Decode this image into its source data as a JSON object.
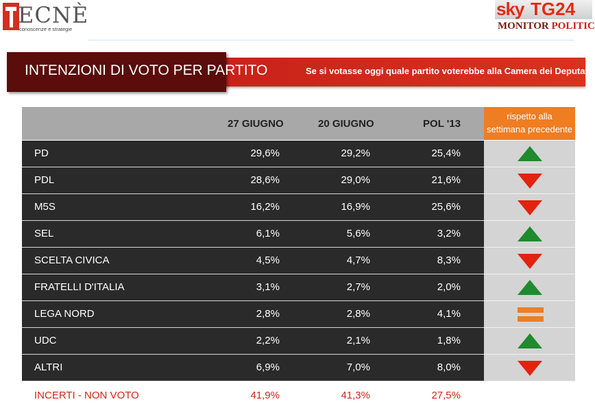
{
  "header": {
    "tecne_word": "ECNÈ",
    "tecne_sub": "conoscenze e strategie",
    "sky": "sky",
    "tg": "TG24",
    "monitor": "MONITOR",
    "politico": "POLITICO"
  },
  "title": "INTENZIONI DI VOTO PER PARTITO",
  "question": "Se si votasse oggi quale partito voterebbe alla Camera dei Deputati?",
  "colors": {
    "up": "#1f8a2e",
    "down": "#e1230f",
    "equal": "#ef7d22",
    "accent": "#c8221a"
  },
  "chart_data": {
    "type": "table",
    "columns": [
      "27 GIUGNO",
      "20 GIUGNO",
      "POL '13"
    ],
    "delta_header_line1": "rispetto alla",
    "delta_header_line2": "settimana precedente",
    "rows": [
      {
        "party": "PD",
        "values": [
          "29,6%",
          "29,2%",
          "25,4%"
        ],
        "trend": "up"
      },
      {
        "party": "PDL",
        "values": [
          "28,6%",
          "29,0%",
          "21,6%"
        ],
        "trend": "down"
      },
      {
        "party": "M5S",
        "values": [
          "16,2%",
          "16,9%",
          "25,6%"
        ],
        "trend": "down"
      },
      {
        "party": "SEL",
        "values": [
          "6,1%",
          "5,6%",
          "3,2%"
        ],
        "trend": "up"
      },
      {
        "party": "SCELTA CIVICA",
        "values": [
          "4,5%",
          "4,7%",
          "8,3%"
        ],
        "trend": "down"
      },
      {
        "party": "FRATELLI D'ITALIA",
        "values": [
          "3,1%",
          "2,7%",
          "2,0%"
        ],
        "trend": "up"
      },
      {
        "party": "LEGA NORD",
        "values": [
          "2,8%",
          "2,8%",
          "4,1%"
        ],
        "trend": "equal"
      },
      {
        "party": "UDC",
        "values": [
          "2,2%",
          "2,1%",
          "1,8%"
        ],
        "trend": "up"
      },
      {
        "party": "ALTRI",
        "values": [
          "6,9%",
          "7,0%",
          "8,0%"
        ],
        "trend": "down"
      }
    ],
    "footer": {
      "label": "INCERTI - NON VOTO",
      "values": [
        "41,9%",
        "41,3%",
        "27,5%"
      ]
    }
  }
}
